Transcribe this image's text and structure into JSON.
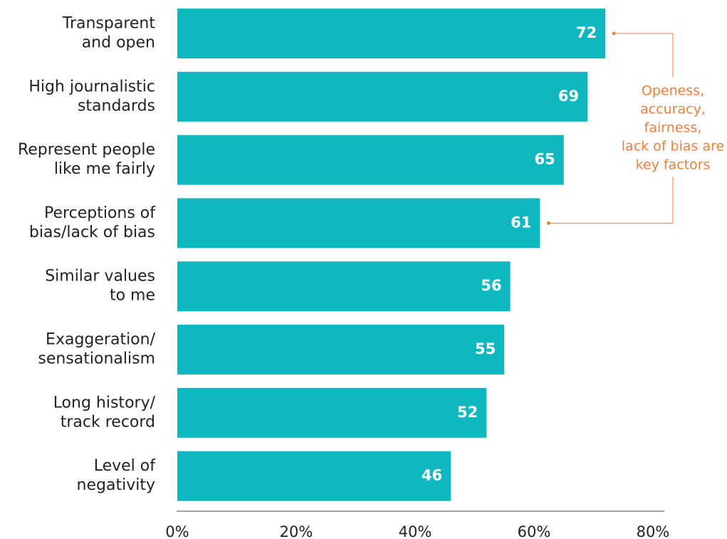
{
  "chart_data": {
    "type": "bar",
    "orientation": "horizontal",
    "categories": [
      [
        "Transparent",
        "and open"
      ],
      [
        "High journalistic",
        "standards"
      ],
      [
        "Represent people",
        "like me fairly"
      ],
      [
        "Perceptions of",
        "bias/lack of bias"
      ],
      [
        "Similar values",
        "to me"
      ],
      [
        "Exaggeration/",
        "sensationalism"
      ],
      [
        "Long history/",
        "track record"
      ],
      [
        "Level of",
        "negativity"
      ]
    ],
    "values": [
      72,
      69,
      65,
      61,
      56,
      55,
      52,
      46
    ],
    "color": "#0fb8bf",
    "xlim": [
      0,
      80
    ],
    "xticks": [
      {
        "value": 0,
        "label": "0%"
      },
      {
        "value": 20,
        "label": "20%"
      },
      {
        "value": 40,
        "label": "40%"
      },
      {
        "value": 60,
        "label": "60%"
      },
      {
        "value": 80,
        "label": "80%"
      }
    ],
    "annotation": {
      "lines": [
        "Openess,",
        "accuracy,",
        "fairness,",
        "lack of bias are",
        "key factors"
      ],
      "color": "#f07f3c"
    }
  }
}
